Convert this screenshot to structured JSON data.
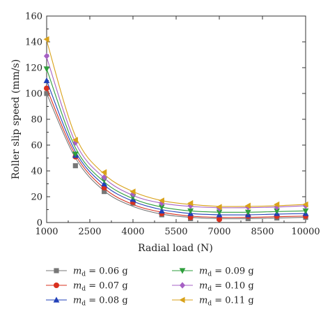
{
  "chart_data": {
    "type": "scatter",
    "xlabel": "Radial load (N)",
    "ylabel": "Roller slip speed (mm/s)",
    "xlim": [
      1000,
      10000
    ],
    "ylim": [
      0,
      160
    ],
    "x_ticks": [
      1000,
      2500,
      4000,
      5500,
      7000,
      8500,
      10000
    ],
    "y_ticks": [
      0,
      20,
      40,
      60,
      80,
      100,
      120,
      140,
      160
    ],
    "grid": false,
    "legend_position": "below",
    "legend_prefix": "m",
    "legend_subscript": "d",
    "x": [
      1000,
      2000,
      3000,
      4000,
      5000,
      6000,
      7000,
      8000,
      9000,
      10000
    ],
    "series": [
      {
        "name": "= 0.06 g",
        "color": "#777777",
        "marker": "square",
        "values": [
          100,
          44,
          24,
          15,
          6,
          3,
          3,
          3,
          3.5,
          4
        ],
        "fit": [
          100,
          50,
          24.5,
          12.5,
          6.5,
          4,
          3,
          3,
          3.5,
          4
        ]
      },
      {
        "name": "= 0.07 g",
        "color": "#d9301e",
        "marker": "circle",
        "values": [
          104,
          51,
          27,
          16,
          7,
          4,
          2.5,
          5,
          5,
          5
        ],
        "fit": [
          104,
          52.5,
          26.5,
          14,
          8,
          5,
          4,
          4,
          4.5,
          5
        ]
      },
      {
        "name": "= 0.08 g",
        "color": "#2140b8",
        "marker": "triangle-up",
        "values": [
          110,
          52,
          30,
          18,
          9,
          7,
          6,
          6,
          7,
          7
        ],
        "fit": [
          110,
          55,
          29,
          16.5,
          10,
          7,
          6,
          6,
          6.5,
          7
        ]
      },
      {
        "name": "= 0.09 g",
        "color": "#2e9e3c",
        "marker": "triangle-down",
        "values": [
          119,
          53,
          33,
          20,
          12,
          9,
          8,
          8,
          9,
          9
        ],
        "fit": [
          119,
          58,
          31.5,
          18.5,
          12,
          9,
          8,
          8,
          8.5,
          9
        ]
      },
      {
        "name": "= 0.10 g",
        "color": "#a660c4",
        "marker": "diamond",
        "values": [
          129,
          62,
          35,
          22,
          15,
          13,
          11,
          12,
          12,
          13
        ],
        "fit": [
          128,
          62,
          34.5,
          21,
          15,
          12.5,
          11.5,
          11.5,
          12,
          13
        ]
      },
      {
        "name": "= 0.11 g",
        "color": "#d9a21a",
        "marker": "triangle-left",
        "values": [
          142,
          64,
          39,
          24,
          17,
          15,
          12,
          13,
          14,
          14
        ],
        "fit": [
          141,
          67,
          37.5,
          24,
          17,
          14,
          12.5,
          12.5,
          13,
          14
        ]
      }
    ]
  }
}
